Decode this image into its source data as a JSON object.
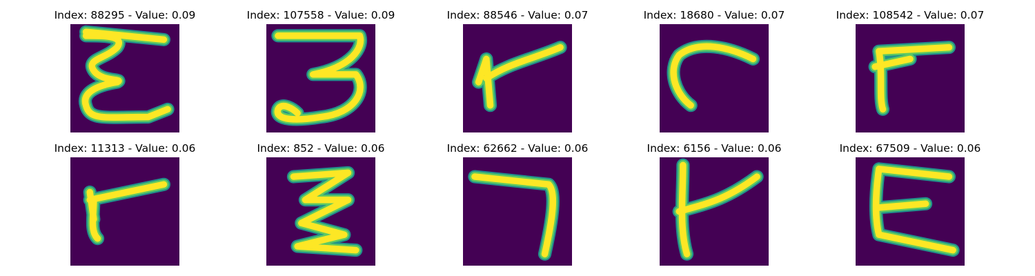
{
  "figure": {
    "panels": [
      {
        "title": "Index: 88295 - Value: 0.09",
        "glyph": "E-squiggle"
      },
      {
        "title": "Index: 107558 - Value: 0.09",
        "glyph": "3-script"
      },
      {
        "title": "Index: 88546 - Value: 0.07",
        "glyph": "r-stroke"
      },
      {
        "title": "Index: 18680 - Value: 0.07",
        "glyph": "c-hook"
      },
      {
        "title": "Index: 108542 - Value: 0.07",
        "glyph": "r-bold"
      },
      {
        "title": "Index: 11313 - Value: 0.06",
        "glyph": "r-small"
      },
      {
        "title": "Index: 852 - Value: 0.06",
        "glyph": "z-zigzag"
      },
      {
        "title": "Index: 62662 - Value: 0.06",
        "glyph": "7-stroke"
      },
      {
        "title": "Index: 6156 - Value: 0.06",
        "glyph": "t-cross"
      },
      {
        "title": "Index: 67509 - Value: 0.06",
        "glyph": "E-round"
      }
    ],
    "colors": {
      "background": "#440154",
      "stroke_core": "#fde725",
      "stroke_edge": "#5ec962",
      "stroke_halo": "#21918c"
    }
  }
}
